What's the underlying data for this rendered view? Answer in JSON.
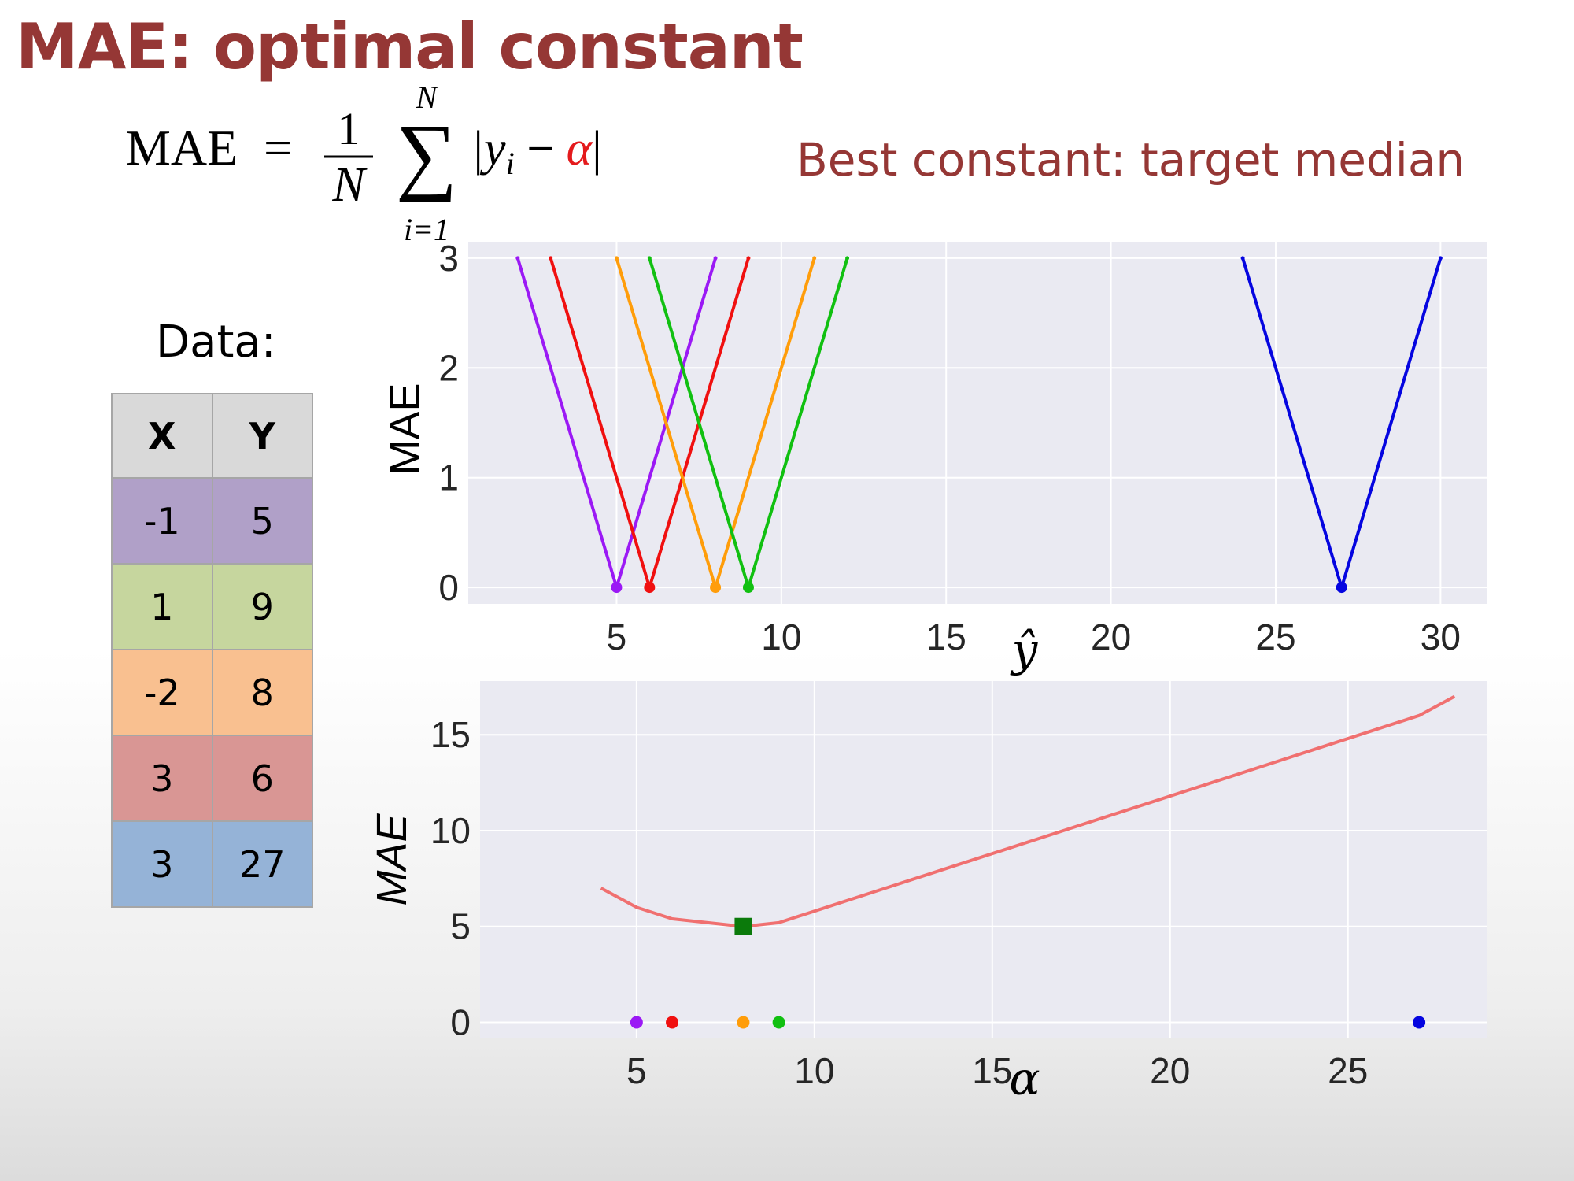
{
  "title": "MAE: optimal constant",
  "formula": {
    "lhs": "MAE",
    "equals": "=",
    "numerator": "1",
    "denominator": "N",
    "sum_symbol": "∑",
    "sum_upper": "N",
    "sum_lower": "i=1",
    "term": "|y",
    "term_sub": "i",
    "minus": " − ",
    "alpha": "α",
    "close_bar": "|",
    "alpha_color": "#e41a1c"
  },
  "subtitle": "Best constant:  target median",
  "data_table": {
    "label": "Data:",
    "headers": [
      "X",
      "Y"
    ],
    "rows": [
      {
        "x": "-1",
        "y": "5",
        "color": "#b0a0c8"
      },
      {
        "x": "1",
        "y": "9",
        "color": "#c6d69e"
      },
      {
        "x": "-2",
        "y": "8",
        "color": "#f9c090"
      },
      {
        "x": "3",
        "y": "6",
        "color": "#d99694"
      },
      {
        "x": "3",
        "y": "27",
        "color": "#95b3d7"
      }
    ]
  },
  "chart_data": [
    {
      "type": "line",
      "title": "",
      "xlabel": "ŷ",
      "ylabel": "MAE",
      "xlim": [
        0.5,
        31.4
      ],
      "ylim": [
        -0.15,
        3.15
      ],
      "xticks": [
        5,
        10,
        15,
        20,
        25,
        30
      ],
      "yticks": [
        0,
        1,
        2,
        3
      ],
      "grid": true,
      "background": "#eaeaf2",
      "series": [
        {
          "color": "#9b19f5",
          "x": [
            2,
            5,
            8
          ],
          "y": [
            3,
            0,
            3
          ],
          "marker_x": 5,
          "marker_y": 0
        },
        {
          "color": "#f01010",
          "x": [
            3,
            6,
            9
          ],
          "y": [
            3,
            0,
            3
          ],
          "marker_x": 6,
          "marker_y": 0
        },
        {
          "color": "#ff9d0a",
          "x": [
            5,
            8,
            11
          ],
          "y": [
            3,
            0,
            3
          ],
          "marker_x": 8,
          "marker_y": 0
        },
        {
          "color": "#11c011",
          "x": [
            6,
            9,
            12
          ],
          "y": [
            3,
            0,
            3
          ],
          "marker_x": 9,
          "marker_y": 0
        },
        {
          "color": "#0505e0",
          "x": [
            24,
            27,
            30
          ],
          "y": [
            3,
            0,
            3
          ],
          "marker_x": 27,
          "marker_y": 0
        }
      ]
    },
    {
      "type": "line",
      "title": "",
      "xlabel": "α",
      "ylabel": "MAE",
      "xlim": [
        0.6,
        28.9
      ],
      "ylim": [
        -0.8,
        17.8
      ],
      "xticks": [
        5,
        10,
        15,
        20,
        25
      ],
      "yticks": [
        0,
        5,
        10,
        15
      ],
      "grid": true,
      "background": "#eaeaf2",
      "series": [
        {
          "color": "#f07070",
          "x": [
            4,
            5,
            6,
            7,
            8,
            9,
            27,
            28
          ],
          "y": [
            7,
            6,
            5.4,
            5.2,
            5,
            5.2,
            16,
            17
          ]
        }
      ],
      "points": [
        {
          "x": 5,
          "y": 0,
          "color": "#9b19f5"
        },
        {
          "x": 6,
          "y": 0,
          "color": "#f01010"
        },
        {
          "x": 8,
          "y": 0,
          "color": "#ff9d0a"
        },
        {
          "x": 9,
          "y": 0,
          "color": "#11c011"
        },
        {
          "x": 27,
          "y": 0,
          "color": "#0505e0"
        }
      ],
      "optimum": {
        "x": 8,
        "y": 5,
        "color": "#0b7a0b",
        "marker": "square"
      }
    }
  ]
}
